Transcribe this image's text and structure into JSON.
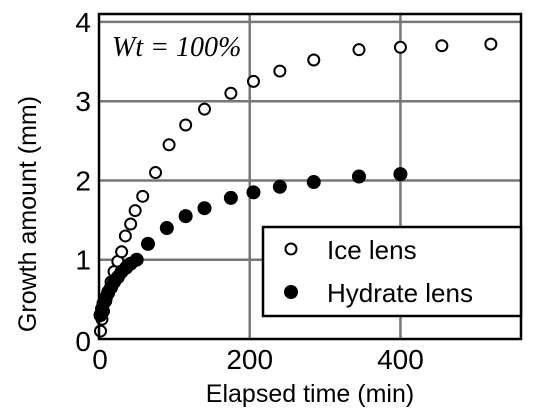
{
  "chart_data": {
    "type": "scatter",
    "xlabel": "Elapsed time (min)",
    "ylabel": "Growth amount (mm)",
    "xlim": [
      0,
      560
    ],
    "ylim": [
      0,
      4.1
    ],
    "x_ticks": [
      0,
      200,
      400
    ],
    "y_ticks": [
      0,
      1,
      2,
      3,
      4
    ],
    "x_tick_labels": [
      "0",
      "200",
      "400"
    ],
    "y_tick_labels": [
      "0",
      "1",
      "2",
      "3",
      "4"
    ],
    "grid": true,
    "legend_position": "bottom-right",
    "annotation": "Wt = 100%",
    "series": [
      {
        "name": "Ice lens",
        "marker": "open-circle",
        "x": [
          2,
          4,
          6,
          9,
          12,
          16,
          20,
          25,
          30,
          35,
          42,
          48,
          58,
          75,
          93,
          115,
          140,
          175,
          205,
          240,
          285,
          345,
          400,
          455,
          520
        ],
        "y": [
          0.1,
          0.25,
          0.35,
          0.48,
          0.6,
          0.72,
          0.85,
          0.98,
          1.1,
          1.3,
          1.45,
          1.62,
          1.8,
          2.1,
          2.45,
          2.7,
          2.9,
          3.1,
          3.25,
          3.38,
          3.52,
          3.65,
          3.68,
          3.7,
          3.72
        ]
      },
      {
        "name": "Hydrate lens",
        "marker": "filled-circle",
        "x": [
          2,
          4,
          6,
          9,
          12,
          16,
          20,
          25,
          30,
          36,
          42,
          50,
          65,
          90,
          115,
          140,
          175,
          205,
          240,
          285,
          345,
          400
        ],
        "y": [
          0.3,
          0.38,
          0.45,
          0.52,
          0.58,
          0.65,
          0.72,
          0.78,
          0.85,
          0.9,
          0.95,
          1.0,
          1.2,
          1.4,
          1.55,
          1.65,
          1.78,
          1.85,
          1.92,
          1.98,
          2.05,
          2.08
        ]
      }
    ]
  }
}
